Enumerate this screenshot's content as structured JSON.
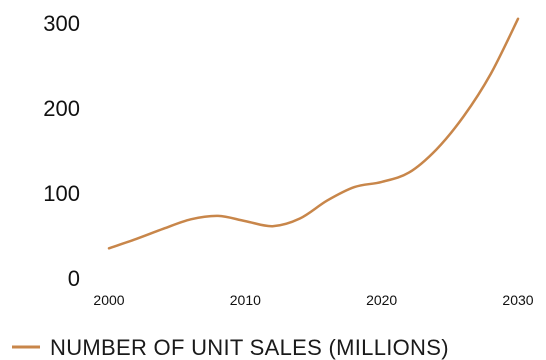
{
  "chart_data": {
    "type": "line",
    "title": "",
    "xlabel": "",
    "ylabel": "",
    "xlim": [
      2000,
      2030
    ],
    "ylim": [
      0,
      300
    ],
    "x_ticks": [
      2000,
      2010,
      2020,
      2030
    ],
    "y_ticks": [
      0,
      100,
      200,
      300
    ],
    "grid": false,
    "legend_position": "bottom-left",
    "series": [
      {
        "name": "NUMBER OF UNIT SALES (MILLIONS)",
        "color": "#c8864a",
        "x": [
          2000,
          2002,
          2004,
          2006,
          2008,
          2010,
          2012,
          2014,
          2016,
          2018,
          2020,
          2022,
          2024,
          2026,
          2028,
          2030
        ],
        "values": [
          35,
          46,
          58,
          69,
          73,
          67,
          61,
          70,
          91,
          107,
          113,
          124,
          151,
          190,
          240,
          305
        ]
      }
    ]
  }
}
